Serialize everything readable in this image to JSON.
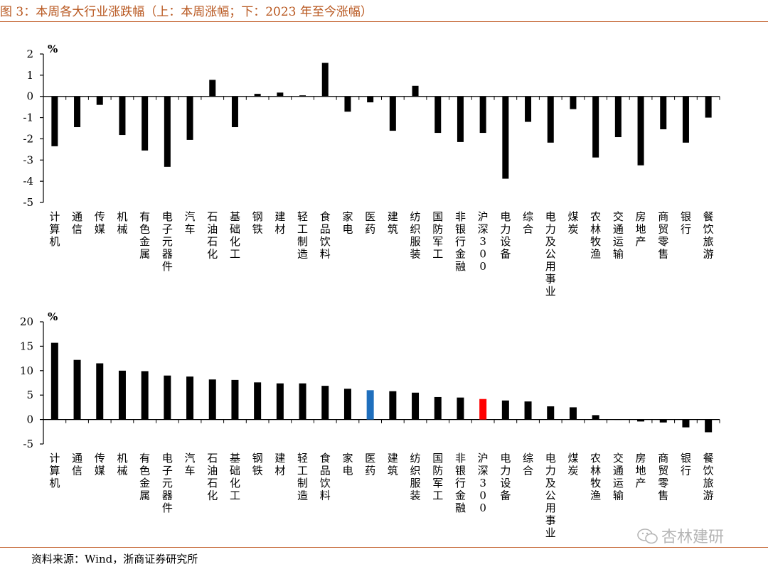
{
  "header": {
    "title": "图 3：本周各大行业涨跌幅（上：本周涨幅；下：2023 年至今涨幅）"
  },
  "footer": {
    "source": "资料来源：Wind，浙商证券研究所",
    "watermark": "杏林建研"
  },
  "colors": {
    "bar": "#000000",
    "highlight_blue": "#1f6fbd",
    "highlight_red": "#ff0000",
    "title": "#b8571f"
  },
  "chart_data": [
    {
      "type": "bar",
      "title": "",
      "unit": "%",
      "ylim": [
        -5,
        2
      ],
      "yticks": [
        2,
        1,
        0,
        -1,
        -2,
        -3,
        -4,
        -5
      ],
      "categories": [
        "计算机",
        "通信",
        "传媒",
        "机械",
        "有色金属",
        "电子元器件",
        "汽车",
        "石油石化",
        "基础化工",
        "钢铁",
        "建材",
        "轻工制造",
        "食品饮料",
        "家电",
        "医药",
        "建筑",
        "纺织服装",
        "国防军工",
        "非银行金融",
        "沪深300",
        "电力设备",
        "综合",
        "电力及公用事业",
        "煤炭",
        "农林牧渔",
        "交通运输",
        "房地产",
        "商贸零售",
        "银行",
        "餐饮旅游"
      ],
      "values": [
        -2.35,
        -1.45,
        -0.4,
        -1.82,
        -2.55,
        -3.32,
        -2.05,
        0.78,
        -1.45,
        0.12,
        0.18,
        0.05,
        1.58,
        -0.72,
        -0.28,
        -1.62,
        0.5,
        -1.72,
        -2.15,
        -1.72,
        -3.88,
        -1.2,
        -2.18,
        -0.6,
        -2.88,
        -1.92,
        -3.25,
        -1.55,
        -2.18,
        -1.0
      ],
      "highlights": {}
    },
    {
      "type": "bar",
      "title": "",
      "unit": "%",
      "ylim": [
        -5,
        20
      ],
      "yticks": [
        20,
        15,
        10,
        5,
        0,
        -5
      ],
      "categories": [
        "计算机",
        "通信",
        "传媒",
        "机械",
        "有色金属",
        "电子元器件",
        "汽车",
        "石油石化",
        "基础化工",
        "钢铁",
        "建材",
        "轻工制造",
        "食品饮料",
        "家电",
        "医药",
        "建筑",
        "纺织服装",
        "国防军工",
        "非银行金融",
        "沪深300",
        "电力设备",
        "综合",
        "电力及公用事业",
        "煤炭",
        "农林牧渔",
        "交通运输",
        "房地产",
        "商贸零售",
        "银行",
        "餐饮旅游"
      ],
      "values": [
        15.7,
        12.2,
        11.5,
        10.0,
        9.9,
        9.0,
        8.8,
        8.2,
        8.1,
        7.6,
        7.4,
        7.4,
        6.9,
        6.3,
        6.0,
        5.8,
        5.5,
        4.6,
        4.5,
        4.2,
        3.9,
        3.7,
        2.7,
        2.5,
        0.9,
        0.05,
        -0.4,
        -0.6,
        -1.6,
        -2.6
      ],
      "highlights": {
        "医药": "#1f6fbd",
        "沪深300": "#ff0000"
      }
    }
  ]
}
